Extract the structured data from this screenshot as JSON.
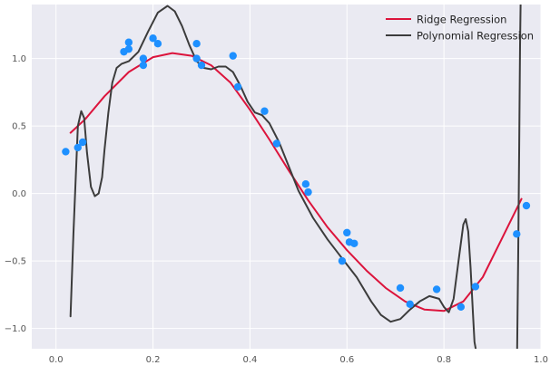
{
  "chart_data": {
    "type": "scatter",
    "xlim": [
      -0.05,
      1.0
    ],
    "ylim": [
      -1.15,
      1.4
    ],
    "grid": true,
    "legend_placement": "top-right",
    "x_ticks": [
      0.0,
      0.2,
      0.4,
      0.6,
      0.8,
      1.0
    ],
    "x_tick_labels": [
      "0.0",
      "0.2",
      "0.4",
      "0.6",
      "0.8",
      "1.0"
    ],
    "y_ticks": [
      -1.0,
      -0.5,
      0.0,
      0.5,
      1.0
    ],
    "y_tick_labels": [
      "−1.0",
      "−0.5",
      "0.0",
      "0.5",
      "1.0"
    ],
    "colors": {
      "background": "#eaeaf2",
      "grid": "#ffffff",
      "points": "#1e90ff",
      "ridge": "#dc143c",
      "poly": "#3c3c3c",
      "tick_text": "#555555"
    },
    "points": [
      {
        "x": 0.02,
        "y": 0.31
      },
      {
        "x": 0.045,
        "y": 0.34
      },
      {
        "x": 0.055,
        "y": 0.38
      },
      {
        "x": 0.14,
        "y": 1.05
      },
      {
        "x": 0.15,
        "y": 1.12
      },
      {
        "x": 0.15,
        "y": 1.07
      },
      {
        "x": 0.18,
        "y": 1.0
      },
      {
        "x": 0.18,
        "y": 0.95
      },
      {
        "x": 0.2,
        "y": 1.15
      },
      {
        "x": 0.21,
        "y": 1.11
      },
      {
        "x": 0.29,
        "y": 1.0
      },
      {
        "x": 0.29,
        "y": 1.11
      },
      {
        "x": 0.3,
        "y": 0.95
      },
      {
        "x": 0.365,
        "y": 1.02
      },
      {
        "x": 0.375,
        "y": 0.79
      },
      {
        "x": 0.43,
        "y": 0.61
      },
      {
        "x": 0.455,
        "y": 0.37
      },
      {
        "x": 0.515,
        "y": 0.07
      },
      {
        "x": 0.52,
        "y": 0.01
      },
      {
        "x": 0.59,
        "y": -0.5
      },
      {
        "x": 0.6,
        "y": -0.29
      },
      {
        "x": 0.605,
        "y": -0.36
      },
      {
        "x": 0.615,
        "y": -0.37
      },
      {
        "x": 0.71,
        "y": -0.7
      },
      {
        "x": 0.73,
        "y": -0.82
      },
      {
        "x": 0.785,
        "y": -0.71
      },
      {
        "x": 0.835,
        "y": -0.84
      },
      {
        "x": 0.865,
        "y": -0.69
      },
      {
        "x": 0.95,
        "y": -0.3
      },
      {
        "x": 0.97,
        "y": -0.09
      }
    ],
    "series": [
      {
        "name": "Ridge Regression",
        "type": "line",
        "x": [
          0.03,
          0.06,
          0.1,
          0.15,
          0.2,
          0.24,
          0.28,
          0.32,
          0.36,
          0.4,
          0.44,
          0.48,
          0.52,
          0.56,
          0.6,
          0.64,
          0.68,
          0.72,
          0.76,
          0.8,
          0.84,
          0.88,
          0.92,
          0.96
        ],
        "y": [
          0.45,
          0.55,
          0.72,
          0.9,
          1.01,
          1.04,
          1.02,
          0.95,
          0.82,
          0.62,
          0.4,
          0.17,
          -0.05,
          -0.25,
          -0.42,
          -0.57,
          -0.7,
          -0.8,
          -0.86,
          -0.87,
          -0.8,
          -0.62,
          -0.33,
          -0.04
        ]
      },
      {
        "name": "Polynomial Regression",
        "type": "line",
        "x": [
          0.03,
          0.036,
          0.045,
          0.052,
          0.058,
          0.064,
          0.072,
          0.08,
          0.088,
          0.095,
          0.1,
          0.108,
          0.116,
          0.125,
          0.135,
          0.15,
          0.17,
          0.19,
          0.21,
          0.23,
          0.245,
          0.26,
          0.275,
          0.29,
          0.305,
          0.32,
          0.335,
          0.35,
          0.365,
          0.38,
          0.395,
          0.41,
          0.425,
          0.44,
          0.46,
          0.48,
          0.5,
          0.53,
          0.56,
          0.59,
          0.62,
          0.65,
          0.67,
          0.69,
          0.71,
          0.73,
          0.75,
          0.77,
          0.79,
          0.8,
          0.81,
          0.82,
          0.83,
          0.84,
          0.845,
          0.85,
          0.855,
          0.86,
          0.863,
          0.866
        ],
        "y": [
          -0.91,
          -0.3,
          0.5,
          0.61,
          0.56,
          0.3,
          0.05,
          -0.02,
          0.0,
          0.12,
          0.32,
          0.6,
          0.82,
          0.93,
          0.96,
          0.98,
          1.05,
          1.2,
          1.34,
          1.39,
          1.35,
          1.24,
          1.1,
          0.98,
          0.93,
          0.92,
          0.94,
          0.94,
          0.9,
          0.8,
          0.68,
          0.6,
          0.58,
          0.52,
          0.38,
          0.2,
          0.02,
          -0.18,
          -0.34,
          -0.48,
          -0.62,
          -0.8,
          -0.9,
          -0.95,
          -0.93,
          -0.86,
          -0.8,
          -0.76,
          -0.78,
          -0.84,
          -0.88,
          -0.78,
          -0.5,
          -0.23,
          -0.19,
          -0.28,
          -0.55,
          -0.9,
          -1.1,
          -1.16
        ]
      },
      {
        "name": "",
        "type": "line",
        "x": [
          0.951,
          0.953,
          0.955,
          0.957,
          0.958
        ],
        "y": [
          -1.16,
          -0.5,
          0.3,
          1.1,
          1.4
        ]
      }
    ],
    "legend": [
      {
        "label": "Ridge Regression",
        "series": "ridge"
      },
      {
        "label": "Polynomial Regression",
        "series": "poly"
      }
    ]
  }
}
